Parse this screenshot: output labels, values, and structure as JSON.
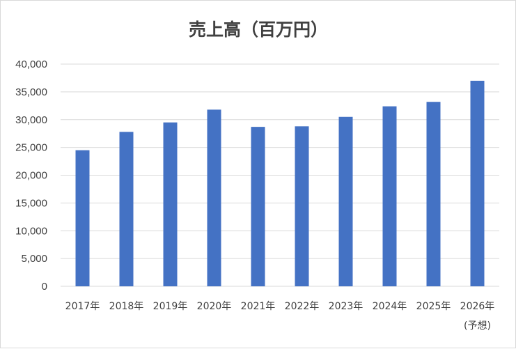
{
  "chart_data": {
    "type": "bar",
    "title": "売上高（百万円）",
    "xlabel": "",
    "ylabel": "",
    "categories": [
      "2017年",
      "2018年",
      "2019年",
      "2020年",
      "2021年",
      "2022年",
      "2023年",
      "2024年",
      "2025年",
      "2026年"
    ],
    "category_notes": [
      "",
      "",
      "",
      "",
      "",
      "",
      "",
      "",
      "",
      "(予想)"
    ],
    "values": [
      24500,
      27800,
      29500,
      31800,
      28700,
      28800,
      30500,
      32400,
      33200,
      37000
    ],
    "ylim": [
      0,
      40000
    ],
    "yticks": [
      "0",
      "5,000",
      "10,000",
      "15,000",
      "20,000",
      "25,000",
      "30,000",
      "35,000",
      "40,000"
    ],
    "grid": true,
    "legend": "none",
    "bar_color": "#4472c4",
    "grid_color": "#d9d9d9"
  }
}
